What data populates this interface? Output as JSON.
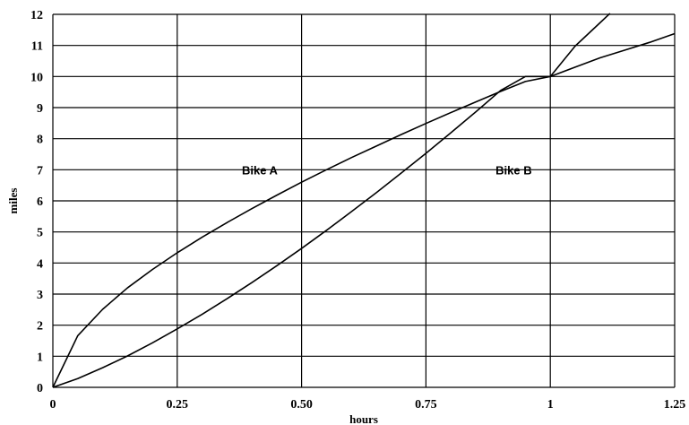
{
  "chart_data": {
    "type": "line",
    "xlabel": "hours",
    "ylabel": "miles",
    "xlim": [
      0,
      1.25
    ],
    "ylim": [
      0,
      12
    ],
    "x_ticks": [
      {
        "value": 0,
        "label": "0"
      },
      {
        "value": 0.25,
        "label": "0.25"
      },
      {
        "value": 0.5,
        "label": "0.50"
      },
      {
        "value": 0.75,
        "label": "0.75"
      },
      {
        "value": 1,
        "label": "1"
      },
      {
        "value": 1.25,
        "label": "1.25"
      }
    ],
    "y_ticks": [
      {
        "value": 0,
        "label": "0"
      },
      {
        "value": 1,
        "label": "1"
      },
      {
        "value": 2,
        "label": "2"
      },
      {
        "value": 3,
        "label": "3"
      },
      {
        "value": 4,
        "label": "4"
      },
      {
        "value": 5,
        "label": "5"
      },
      {
        "value": 6,
        "label": "6"
      },
      {
        "value": 7,
        "label": "7"
      },
      {
        "value": 8,
        "label": "8"
      },
      {
        "value": 9,
        "label": "9"
      },
      {
        "value": 10,
        "label": "10"
      },
      {
        "value": 11,
        "label": "11"
      },
      {
        "value": 12,
        "label": "12"
      }
    ],
    "grid": true,
    "series": [
      {
        "name": "Bike A",
        "color": "#000000",
        "x": [
          0,
          0.05,
          0.1,
          0.15,
          0.2,
          0.25,
          0.3,
          0.35,
          0.4,
          0.45,
          0.5,
          0.55,
          0.6,
          0.65,
          0.7,
          0.75,
          0.8,
          0.85,
          0.9,
          0.95,
          1.0,
          1.05,
          1.1,
          1.15,
          1.2,
          1.25
        ],
        "y": [
          0,
          1.66,
          2.51,
          3.2,
          3.79,
          4.33,
          4.83,
          5.3,
          5.75,
          6.18,
          6.6,
          7.0,
          7.39,
          7.76,
          8.13,
          8.49,
          8.84,
          9.18,
          9.52,
          9.84,
          10.0,
          10.3,
          10.6,
          10.85,
          11.1,
          11.38
        ],
        "label_at": {
          "x": 0.38,
          "y": 7.0
        }
      },
      {
        "name": "Bike B",
        "color": "#000000",
        "x": [
          0,
          0.05,
          0.1,
          0.15,
          0.2,
          0.25,
          0.3,
          0.35,
          0.4,
          0.45,
          0.5,
          0.55,
          0.6,
          0.65,
          0.7,
          0.75,
          0.8,
          0.85,
          0.9,
          0.95,
          1.0,
          1.05,
          1.1,
          1.12
        ],
        "y": [
          0,
          0.28,
          0.63,
          1.01,
          1.43,
          1.88,
          2.35,
          2.85,
          3.37,
          3.91,
          4.47,
          5.05,
          5.65,
          6.26,
          6.89,
          7.53,
          8.19,
          8.86,
          9.55,
          10.0,
          10.0,
          10.98,
          11.73,
          12.03
        ],
        "label_at": {
          "x": 0.89,
          "y": 7.0
        }
      }
    ]
  }
}
